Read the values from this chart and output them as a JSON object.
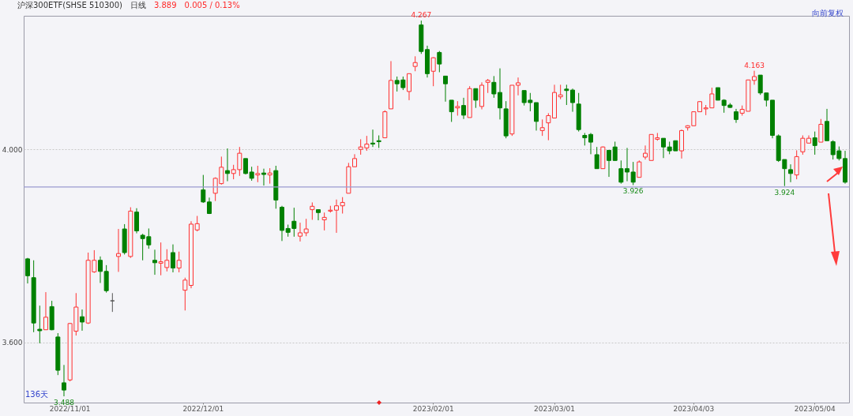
{
  "chart_data": {
    "type": "candlestick",
    "title": "沪深300ETF(SHSE 510300)",
    "annotations": [
      "日线",
      "3.889",
      "0.005 / 0.13%",
      "向前复权",
      "136天",
      {
        "text": "4.267",
        "y": 4.267
      },
      {
        "text": "3.488",
        "y": 3.488
      },
      {
        "text": "3.926",
        "y": 3.926
      },
      {
        "text": "4.163",
        "y": 4.163
      },
      {
        "text": "3.924",
        "y": 3.924
      }
    ],
    "categories": [
      null,
      null,
      null,
      null,
      null,
      null,
      null,
      "2022/11/01",
      null,
      null,
      null,
      null,
      null,
      null,
      null,
      null,
      null,
      null,
      null,
      null,
      null,
      null,
      null,
      null,
      null,
      null,
      null,
      null,
      null,
      "2022/12/01",
      null,
      null,
      null,
      null,
      null,
      null,
      null,
      null,
      null,
      null,
      null,
      null,
      null,
      null,
      null,
      null,
      null,
      null,
      null,
      null,
      null,
      null,
      null,
      null,
      null,
      null,
      null,
      null,
      null,
      null,
      null,
      null,
      null,
      null,
      null,
      null,
      null,
      "2023/02/01",
      null,
      null,
      null,
      null,
      null,
      null,
      null,
      null,
      null,
      null,
      null,
      null,
      null,
      null,
      null,
      null,
      null,
      null,
      null,
      "2023/03/01",
      null,
      null,
      null,
      null,
      null,
      null,
      null,
      null,
      null,
      null,
      null,
      null,
      null,
      null,
      null,
      null,
      null,
      null,
      null,
      null,
      null,
      null,
      "2023/04/03",
      null,
      null,
      null,
      null,
      null,
      null,
      null,
      null,
      null,
      null,
      null,
      null,
      null,
      null,
      null,
      null,
      null,
      null,
      null,
      "2023/05/04",
      null,
      null,
      null,
      null,
      null
    ],
    "ohlc": [
      [
        3.773,
        3.775,
        3.722,
        3.738
      ],
      [
        3.734,
        3.77,
        3.621,
        3.64
      ],
      [
        3.627,
        3.676,
        3.598,
        3.624
      ],
      [
        3.626,
        3.704,
        3.626,
        3.652
      ],
      [
        3.674,
        3.686,
        3.625,
        3.626
      ],
      [
        3.611,
        3.619,
        3.532,
        3.542
      ],
      [
        3.516,
        3.553,
        3.488,
        3.501
      ],
      [
        3.522,
        3.64,
        3.519,
        3.639
      ],
      [
        3.623,
        3.702,
        3.614,
        3.673
      ],
      [
        3.653,
        3.668,
        3.624,
        3.642
      ],
      [
        3.64,
        3.786,
        3.638,
        3.77
      ],
      [
        3.746,
        3.791,
        3.744,
        3.77
      ],
      [
        3.77,
        3.778,
        3.723,
        3.747
      ],
      [
        3.747,
        3.76,
        3.703,
        3.707
      ],
      [
        3.686,
        3.702,
        3.663,
        3.686
      ],
      [
        3.778,
        3.835,
        3.746,
        3.784
      ],
      [
        3.835,
        3.845,
        3.782,
        3.786
      ],
      [
        3.778,
        3.88,
        3.775,
        3.872
      ],
      [
        3.87,
        3.878,
        3.826,
        3.831
      ],
      [
        3.822,
        3.825,
        3.77,
        3.815
      ],
      [
        3.819,
        3.836,
        3.794,
        3.802
      ],
      [
        3.77,
        3.792,
        3.74,
        3.765
      ],
      [
        3.764,
        3.807,
        3.739,
        3.767
      ],
      [
        3.755,
        3.793,
        3.747,
        3.77
      ],
      [
        3.786,
        3.803,
        3.745,
        3.754
      ],
      [
        3.754,
        3.788,
        3.745,
        3.77
      ],
      [
        3.708,
        3.734,
        3.666,
        3.729
      ],
      [
        3.718,
        3.851,
        3.712,
        3.845
      ],
      [
        3.833,
        3.862,
        3.83,
        3.846
      ],
      [
        3.916,
        3.947,
        3.889,
        3.891
      ],
      [
        3.891,
        3.9,
        3.866,
        3.867
      ],
      [
        3.909,
        3.942,
        3.893,
        3.94
      ],
      [
        3.929,
        3.985,
        3.927,
        3.963
      ],
      [
        3.956,
        4.002,
        3.934,
        3.95
      ],
      [
        3.95,
        3.968,
        3.938,
        3.958
      ],
      [
        3.958,
        4.005,
        3.945,
        3.992
      ],
      [
        3.981,
        3.981,
        3.948,
        3.95
      ],
      [
        3.953,
        3.964,
        3.935,
        3.94
      ],
      [
        3.947,
        3.966,
        3.932,
        3.95
      ],
      [
        3.951,
        3.96,
        3.925,
        3.948
      ],
      [
        3.947,
        3.961,
        3.929,
        3.951
      ],
      [
        3.956,
        3.966,
        3.877,
        3.895
      ],
      [
        3.88,
        3.883,
        3.81,
        3.832
      ],
      [
        3.836,
        3.844,
        3.819,
        3.828
      ],
      [
        3.851,
        3.879,
        3.819,
        3.836
      ],
      [
        3.82,
        3.848,
        3.809,
        3.827
      ],
      [
        3.827,
        3.856,
        3.82,
        3.835
      ],
      [
        3.875,
        3.89,
        3.854,
        3.882
      ],
      [
        3.875,
        3.875,
        3.853,
        3.869
      ],
      [
        3.854,
        3.869,
        3.832,
        3.859
      ],
      [
        3.872,
        3.883,
        3.869,
        3.874
      ],
      [
        3.874,
        3.896,
        3.827,
        3.883
      ],
      [
        3.883,
        3.901,
        3.867,
        3.89
      ],
      [
        3.909,
        3.972,
        3.909,
        3.964
      ],
      [
        3.964,
        3.99,
        3.964,
        3.981
      ],
      [
        4.0,
        4.021,
        3.989,
        4.005
      ],
      [
        4.003,
        4.028,
        3.997,
        4.011
      ],
      [
        4.013,
        4.041,
        4.005,
        4.011
      ],
      [
        4.018,
        4.029,
        4.003,
        4.016
      ],
      [
        4.024,
        4.081,
        4.024,
        4.078
      ],
      [
        4.084,
        4.183,
        4.084,
        4.143
      ],
      [
        4.143,
        4.151,
        4.12,
        4.136
      ],
      [
        4.144,
        4.151,
        4.123,
        4.128
      ],
      [
        4.12,
        4.157,
        4.102,
        4.157
      ],
      [
        4.172,
        4.193,
        4.162,
        4.18
      ],
      [
        4.258,
        4.267,
        4.198,
        4.203
      ],
      [
        4.207,
        4.215,
        4.149,
        4.157
      ],
      [
        4.162,
        4.191,
        4.131,
        4.19
      ],
      [
        4.201,
        4.204,
        4.16,
        4.177
      ],
      [
        4.152,
        4.152,
        4.099,
        4.136
      ],
      [
        4.102,
        4.102,
        4.057,
        4.078
      ],
      [
        4.086,
        4.1,
        4.07,
        4.089
      ],
      [
        4.091,
        4.107,
        4.063,
        4.071
      ],
      [
        4.066,
        4.131,
        4.066,
        4.126
      ],
      [
        4.126,
        4.126,
        4.086,
        4.102
      ],
      [
        4.089,
        4.139,
        4.083,
        4.133
      ],
      [
        4.139,
        4.146,
        4.117,
        4.143
      ],
      [
        4.139,
        4.152,
        4.107,
        4.115
      ],
      [
        4.118,
        4.168,
        4.062,
        4.086
      ],
      [
        4.084,
        4.1,
        4.023,
        4.028
      ],
      [
        4.032,
        4.133,
        4.028,
        4.133
      ],
      [
        4.133,
        4.149,
        4.112,
        4.138
      ],
      [
        4.122,
        4.122,
        4.091,
        4.097
      ],
      [
        4.102,
        4.117,
        4.079,
        4.097
      ],
      [
        4.097,
        4.097,
        4.039,
        4.058
      ],
      [
        4.039,
        4.062,
        4.028,
        4.045
      ],
      [
        4.055,
        4.075,
        4.019,
        4.07
      ],
      [
        4.065,
        4.134,
        4.065,
        4.118
      ],
      [
        4.109,
        4.134,
        4.104,
        4.113
      ],
      [
        4.125,
        4.134,
        4.092,
        4.122
      ],
      [
        4.123,
        4.126,
        4.078,
        4.097
      ],
      [
        4.094,
        4.117,
        4.037,
        4.041
      ],
      [
        4.029,
        4.034,
        4.008,
        4.024
      ],
      [
        4.031,
        4.034,
        3.99,
        4.015
      ],
      [
        3.989,
        4.005,
        3.96,
        3.96
      ],
      [
        3.96,
        4.006,
        3.96,
        4.005
      ],
      [
        3.998,
        3.998,
        3.943,
        3.977
      ],
      [
        4.005,
        4.016,
        3.977,
        3.977
      ],
      [
        3.96,
        3.977,
        3.929,
        3.932
      ],
      [
        3.96,
        4.003,
        3.934,
        3.953
      ],
      [
        3.953,
        3.974,
        3.926,
        3.932
      ],
      [
        3.942,
        3.977,
        3.942,
        3.974
      ],
      [
        3.984,
        4.008,
        3.979,
        3.992
      ],
      [
        3.977,
        4.031,
        3.977,
        4.031
      ],
      [
        4.021,
        4.034,
        4.018,
        4.024
      ],
      [
        4.023,
        4.023,
        3.982,
        4.005
      ],
      [
        4.005,
        4.016,
        3.99,
        3.997
      ],
      [
        4.018,
        4.018,
        3.997,
        3.997
      ],
      [
        3.997,
        4.041,
        3.981,
        4.039
      ],
      [
        4.045,
        4.05,
        4.039,
        4.049
      ],
      [
        4.049,
        4.078,
        4.049,
        4.078
      ],
      [
        4.078,
        4.1,
        4.078,
        4.099
      ],
      [
        4.084,
        4.092,
        4.071,
        4.086
      ],
      [
        4.086,
        4.128,
        4.086,
        4.115
      ],
      [
        4.128,
        4.128,
        4.102,
        4.102
      ],
      [
        4.102,
        4.104,
        4.076,
        4.091
      ],
      [
        4.092,
        4.096,
        4.086,
        4.087
      ],
      [
        4.078,
        4.084,
        4.055,
        4.062
      ],
      [
        4.075,
        4.091,
        4.07,
        4.083
      ],
      [
        4.079,
        4.144,
        4.079,
        4.144
      ],
      [
        4.143,
        4.163,
        4.134,
        4.151
      ],
      [
        4.154,
        4.154,
        4.113,
        4.117
      ],
      [
        4.117,
        4.117,
        4.089,
        4.102
      ],
      [
        4.102,
        4.102,
        4.023,
        4.029
      ],
      [
        4.028,
        4.031,
        3.974,
        3.977
      ],
      [
        3.979,
        3.979,
        3.924,
        3.96
      ],
      [
        3.958,
        3.969,
        3.932,
        3.95
      ],
      [
        3.947,
        3.998,
        3.938,
        3.985
      ],
      [
        3.995,
        4.029,
        3.989,
        4.023
      ],
      [
        4.013,
        4.029,
        4.013,
        4.023
      ],
      [
        4.024,
        4.037,
        3.989,
        4.008
      ],
      [
        4.015,
        4.063,
        4.015,
        4.052
      ],
      [
        4.058,
        4.084,
        4.018,
        4.018
      ],
      [
        4.016,
        4.019,
        3.979,
        3.989
      ],
      [
        3.997,
        4.006,
        3.977,
        3.981
      ],
      [
        3.981,
        3.997,
        3.929,
        3.932
      ]
    ],
    "colors": [
      "#008000",
      "#008000",
      "#008000",
      "#ff3030",
      "#008000",
      "#008000",
      "#008000",
      "#ff3030",
      "#ff3030",
      "#008000",
      "#ff3030",
      "#ff3030",
      "#008000",
      "#008000",
      "#555555",
      "#ff3030",
      "#008000",
      "#ff3030",
      "#008000",
      "#008000",
      "#008000",
      "#008000",
      "#ff3030",
      "#ff3030",
      "#008000",
      "#ff3030",
      "#ff3030",
      "#ff3030",
      "#ff3030",
      "#008000",
      "#008000",
      "#ff3030",
      "#ff3030",
      "#008000",
      "#ff3030",
      "#ff3030",
      "#008000",
      "#008000",
      "#ff3030",
      "#008000",
      "#ff3030",
      "#008000",
      "#008000",
      "#008000",
      "#008000",
      "#ff3030",
      "#ff3030",
      "#ff3030",
      "#008000",
      "#ff3030",
      "#ff3030",
      "#ff3030",
      "#ff3030",
      "#ff3030",
      "#ff3030",
      "#ff3030",
      "#ff3030",
      "#008000",
      "#008000",
      "#ff3030",
      "#ff3030",
      "#008000",
      "#008000",
      "#ff3030",
      "#ff3030",
      "#008000",
      "#008000",
      "#ff3030",
      "#008000",
      "#008000",
      "#008000",
      "#ff3030",
      "#008000",
      "#ff3030",
      "#008000",
      "#ff3030",
      "#ff3030",
      "#008000",
      "#008000",
      "#008000",
      "#ff3030",
      "#ff3030",
      "#008000",
      "#008000",
      "#008000",
      "#ff3030",
      "#ff3030",
      "#ff3030",
      "#ff3030",
      "#008000",
      "#008000",
      "#008000",
      "#008000",
      "#008000",
      "#008000",
      "#ff3030",
      "#008000",
      "#008000",
      "#008000",
      "#008000",
      "#008000",
      "#ff3030",
      "#ff3030",
      "#ff3030",
      "#ff3030",
      "#008000",
      "#008000",
      "#008000",
      "#ff3030",
      "#ff3030",
      "#ff3030",
      "#ff3030",
      "#ff3030",
      "#ff3030",
      "#008000",
      "#008000",
      "#008000",
      "#008000",
      "#ff3030",
      "#ff3030",
      "#ff3030",
      "#008000",
      "#008000",
      "#008000",
      "#008000",
      "#008000",
      "#008000",
      "#ff3030",
      "#ff3030",
      "#ff3030",
      "#008000",
      "#ff3030",
      "#008000",
      "#008000",
      "#008000",
      "#008000"
    ],
    "ylim": [
      3.475,
      4.277
    ],
    "yticks": [
      {
        "value": 3.6,
        "label": "3.600"
      },
      {
        "value": 4,
        "label": "4.000"
      }
    ],
    "grid": "y",
    "ref_lines": [
      {
        "axis": "y",
        "value": 3.922,
        "color": "#9a9ad0"
      }
    ]
  }
}
